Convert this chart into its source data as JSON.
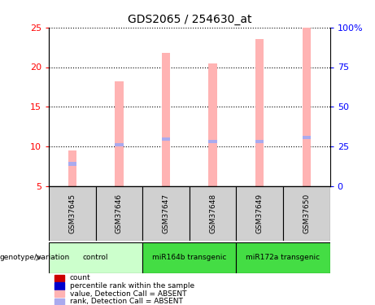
{
  "title": "GDS2065 / 254630_at",
  "samples": [
    "GSM37645",
    "GSM37646",
    "GSM37647",
    "GSM37648",
    "GSM37649",
    "GSM37650"
  ],
  "bar_tops": [
    9.5,
    18.2,
    21.8,
    20.5,
    23.5,
    25.0
  ],
  "rank_values": [
    7.8,
    10.2,
    10.9,
    10.6,
    10.6,
    11.1
  ],
  "bar_bottom": 5.0,
  "ylim_left": [
    5,
    25
  ],
  "ylim_right": [
    0,
    100
  ],
  "yticks_left": [
    5,
    10,
    15,
    20,
    25
  ],
  "yticks_right": [
    0,
    25,
    50,
    75,
    100
  ],
  "ytick_labels_right": [
    "0",
    "25",
    "50",
    "75",
    "100%"
  ],
  "bar_color": "#ffb3b3",
  "rank_color": "#aaaaee",
  "count_color": "#cc0000",
  "rank_dot_color": "#0000cc",
  "sample_box_color": "#d0d0d0",
  "control_color": "#ccffcc",
  "transgenic1_color": "#44dd44",
  "transgenic2_color": "#44dd44",
  "group_info": [
    {
      "start": 0,
      "end": 1,
      "label": "control",
      "color": "#ccffcc"
    },
    {
      "start": 2,
      "end": 3,
      "label": "miR164b transgenic",
      "color": "#44dd44"
    },
    {
      "start": 4,
      "end": 5,
      "label": "miR172a transgenic",
      "color": "#44dd44"
    }
  ],
  "legend_colors": [
    "#cc0000",
    "#0000cc",
    "#ffb3b3",
    "#aaaaee"
  ],
  "legend_labels": [
    "count",
    "percentile rank within the sample",
    "value, Detection Call = ABSENT",
    "rank, Detection Call = ABSENT"
  ]
}
